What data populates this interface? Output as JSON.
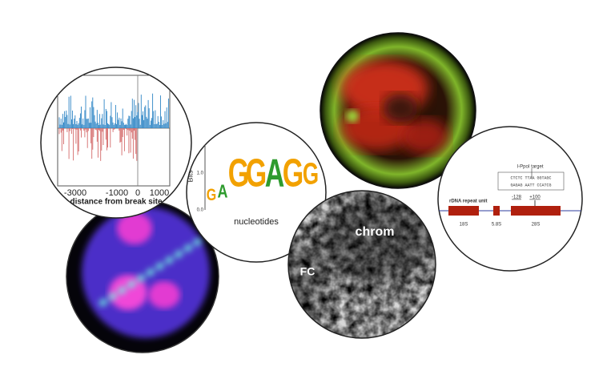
{
  "panels": {
    "break_plot": {
      "xticks": [
        "-3000",
        "-1000",
        "0",
        "1000"
      ],
      "xlabel": "distance from break site"
    },
    "sequence_logo": {
      "yticks": [
        "0.0",
        "1.0",
        "2.0"
      ],
      "ylabel": "Bits",
      "small_letters": [
        "G",
        "A"
      ],
      "big_letters": [
        "G",
        "G",
        "A",
        "G",
        "G"
      ],
      "xlabel": "nucleotides"
    },
    "em_image": {
      "labels": [
        "chrom",
        "FC"
      ]
    },
    "rdna_diagram": {
      "title": "I-PpoI target",
      "sequence_top": "CTCTC TTAA GGTAGC",
      "sequence_bottom": "GAGAG AATT CCATCG",
      "positions": [
        "-128",
        "+100"
      ],
      "unit_label": "rDNA repeat unit",
      "genes": [
        "18S",
        "5.8S",
        "28S"
      ]
    }
  }
}
